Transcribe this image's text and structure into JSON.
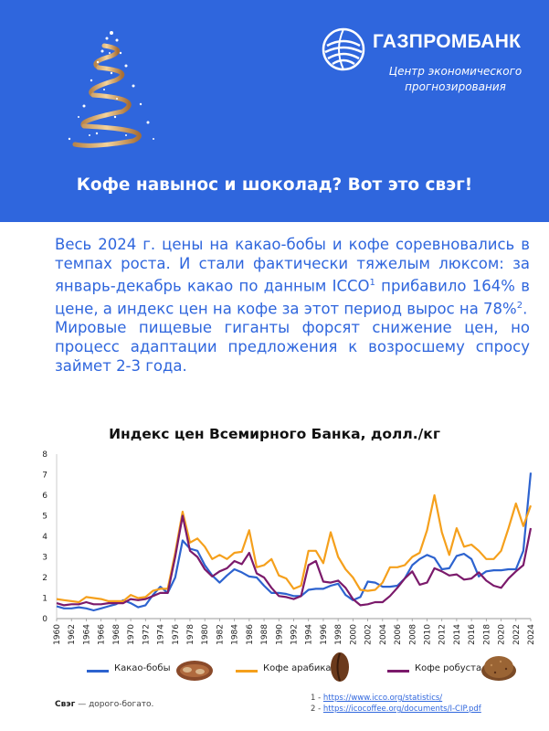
{
  "logo": {
    "name": "ГАЗПРОМБАНК",
    "subtitle": "Центр экономического прогнозирования"
  },
  "banner_title": "Кофе навынос и шоколад? Вот это свэг!",
  "body": {
    "p1_a": "Весь 2024 г. цены на какао-бобы и кофе соревновались в темпах роста. И стали фактически тяжелым люксом: за январь-декабрь какао по данным ICCO",
    "p1_sup1": "1",
    "p1_b": " прибавило 164% в цене, а индекс цен на кофе за этот период вырос на 78%",
    "p1_sup2": "2",
    "p1_c": ".",
    "p2": "Мировые пищевые гиганты форсят снижение цен, но процесс адаптации предложения к возросшему спросу займет 2-3 года."
  },
  "colors": {
    "banner": "#2f66dd",
    "cocoa": "#2d63cf",
    "arabica": "#f5a01c",
    "robusta": "#7b1a6b"
  },
  "chart_data": {
    "type": "line",
    "title": "Индекс цен Всемирного Банка, долл./кг",
    "xlabel": "",
    "ylabel": "",
    "ylim": [
      0,
      8
    ],
    "yticks": [
      0,
      1,
      2,
      3,
      4,
      5,
      6,
      7,
      8
    ],
    "xlim": [
      1960,
      2024
    ],
    "xticks": [
      1960,
      1962,
      1964,
      1966,
      1968,
      1970,
      1972,
      1974,
      1976,
      1978,
      1980,
      1982,
      1984,
      1986,
      1988,
      1990,
      1992,
      1994,
      1996,
      1998,
      2000,
      2002,
      2004,
      2006,
      2008,
      2010,
      2012,
      2014,
      2016,
      2018,
      2020,
      2022,
      2024
    ],
    "grid": false,
    "legend": "bottom",
    "series": [
      {
        "name": "Какао-бобы",
        "color": "#2d63cf",
        "x": [
          1960,
          1961,
          1962,
          1963,
          1964,
          1965,
          1966,
          1967,
          1968,
          1969,
          1970,
          1971,
          1972,
          1973,
          1974,
          1975,
          1976,
          1977,
          1978,
          1979,
          1980,
          1981,
          1982,
          1983,
          1984,
          1985,
          1986,
          1987,
          1988,
          1989,
          1990,
          1991,
          1992,
          1993,
          1994,
          1995,
          1996,
          1997,
          1998,
          1999,
          2000,
          2001,
          2002,
          2003,
          2004,
          2005,
          2006,
          2007,
          2008,
          2009,
          2010,
          2011,
          2012,
          2013,
          2014,
          2015,
          2016,
          2017,
          2018,
          2019,
          2020,
          2021,
          2022,
          2023,
          2024
        ],
        "y": [
          0.6,
          0.5,
          0.5,
          0.55,
          0.5,
          0.4,
          0.5,
          0.6,
          0.7,
          0.9,
          0.75,
          0.55,
          0.65,
          1.15,
          1.55,
          1.25,
          2.0,
          3.8,
          3.4,
          3.3,
          2.6,
          2.1,
          1.75,
          2.1,
          2.4,
          2.25,
          2.05,
          2.0,
          1.6,
          1.25,
          1.25,
          1.2,
          1.1,
          1.1,
          1.4,
          1.45,
          1.45,
          1.6,
          1.7,
          1.15,
          0.9,
          1.05,
          1.8,
          1.75,
          1.55,
          1.55,
          1.6,
          1.95,
          2.6,
          2.9,
          3.1,
          2.95,
          2.4,
          2.45,
          3.05,
          3.15,
          2.9,
          2.05,
          2.3,
          2.35,
          2.35,
          2.4,
          2.4,
          3.3,
          7.1
        ]
      },
      {
        "name": "Кофе арабика",
        "color": "#f5a01c",
        "x": [
          1960,
          1961,
          1962,
          1963,
          1964,
          1965,
          1966,
          1967,
          1968,
          1969,
          1970,
          1971,
          1972,
          1973,
          1974,
          1975,
          1976,
          1977,
          1978,
          1979,
          1980,
          1981,
          1982,
          1983,
          1984,
          1985,
          1986,
          1987,
          1988,
          1989,
          1990,
          1991,
          1992,
          1993,
          1994,
          1995,
          1996,
          1997,
          1998,
          1999,
          2000,
          2001,
          2002,
          2003,
          2004,
          2005,
          2006,
          2007,
          2008,
          2009,
          2010,
          2011,
          2012,
          2013,
          2014,
          2015,
          2016,
          2017,
          2018,
          2019,
          2020,
          2021,
          2022,
          2023,
          2024
        ],
        "y": [
          0.95,
          0.9,
          0.85,
          0.8,
          1.05,
          1.0,
          0.95,
          0.85,
          0.85,
          0.85,
          1.15,
          1.0,
          1.05,
          1.35,
          1.45,
          1.45,
          3.2,
          5.2,
          3.7,
          3.9,
          3.5,
          2.9,
          3.1,
          2.9,
          3.2,
          3.25,
          4.3,
          2.5,
          2.6,
          2.9,
          2.1,
          1.95,
          1.45,
          1.6,
          3.3,
          3.3,
          2.7,
          4.2,
          3.0,
          2.4,
          2.0,
          1.4,
          1.35,
          1.4,
          1.75,
          2.5,
          2.5,
          2.6,
          3.0,
          3.2,
          4.3,
          6.0,
          4.2,
          3.1,
          4.4,
          3.5,
          3.6,
          3.3,
          2.9,
          2.9,
          3.3,
          4.4,
          5.6,
          4.5,
          5.5
        ]
      },
      {
        "name": "Кофе робуста",
        "color": "#7b1a6b",
        "x": [
          1960,
          1961,
          1962,
          1963,
          1964,
          1965,
          1966,
          1967,
          1968,
          1969,
          1970,
          1971,
          1972,
          1973,
          1974,
          1975,
          1976,
          1977,
          1978,
          1979,
          1980,
          1981,
          1982,
          1983,
          1984,
          1985,
          1986,
          1987,
          1988,
          1989,
          1990,
          1991,
          1992,
          1993,
          1994,
          1995,
          1996,
          1997,
          1998,
          1999,
          2000,
          2001,
          2002,
          2003,
          2004,
          2005,
          2006,
          2007,
          2008,
          2009,
          2010,
          2011,
          2012,
          2013,
          2014,
          2015,
          2016,
          2017,
          2018,
          2019,
          2020,
          2021,
          2022,
          2023,
          2024
        ],
        "y": [
          0.75,
          0.65,
          0.7,
          0.7,
          0.8,
          0.7,
          0.7,
          0.75,
          0.75,
          0.75,
          0.95,
          0.9,
          0.95,
          1.1,
          1.25,
          1.25,
          3.0,
          5.0,
          3.3,
          3.0,
          2.4,
          2.05,
          2.3,
          2.45,
          2.8,
          2.65,
          3.2,
          2.2,
          2.0,
          1.5,
          1.1,
          1.05,
          0.95,
          1.1,
          2.6,
          2.8,
          1.8,
          1.75,
          1.85,
          1.5,
          0.95,
          0.65,
          0.7,
          0.8,
          0.8,
          1.1,
          1.5,
          1.95,
          2.3,
          1.65,
          1.75,
          2.45,
          2.3,
          2.1,
          2.15,
          1.9,
          1.95,
          2.25,
          1.85,
          1.6,
          1.5,
          1.95,
          2.3,
          2.6,
          4.4
        ]
      }
    ]
  },
  "legend_items": [
    {
      "label": "Какао-бобы",
      "icon": "cocoa-beans-icon"
    },
    {
      "label": "Кофе арабика",
      "icon": "coffee-bean-icon"
    },
    {
      "label": "Кофе робуста",
      "icon": "ground-coffee-icon"
    }
  ],
  "footer": {
    "term": "Свэг",
    "definition": " — дорого-богато.",
    "ref1_prefix": "1 - ",
    "ref1_url": "https://www.icco.org/statistics/",
    "ref2_prefix": "2 - ",
    "ref2_url": "https://icocoffee.org/documents/I-CIP.pdf"
  }
}
